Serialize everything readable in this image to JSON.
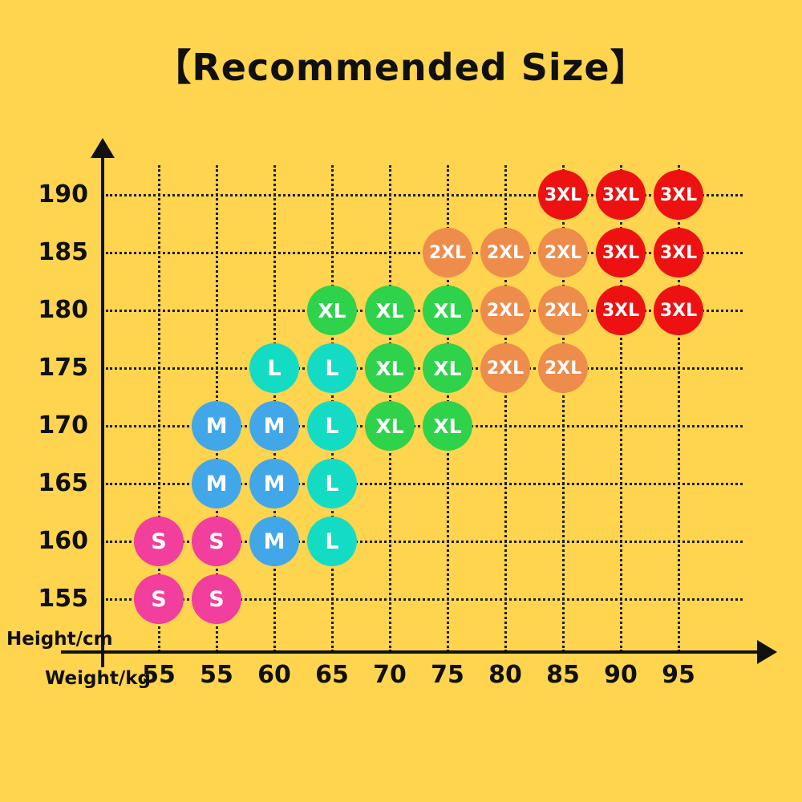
{
  "title": "【Recommended Size】",
  "axes": {
    "y_axis_label": "Height/cm",
    "x_axis_label": "Weight/kg",
    "y_ticks": [
      190,
      185,
      180,
      175,
      170,
      165,
      160,
      155
    ],
    "x_ticks": [
      "55",
      "55",
      "60",
      "65",
      "70",
      "75",
      "80",
      "85",
      "90",
      "95"
    ]
  },
  "colors": {
    "background": "#FFD44E",
    "grid": "#1C1C1C",
    "text": "#101010",
    "circle_text": "#FFFFFF",
    "sizes": {
      "S": "#F23E9C",
      "M": "#42A7E9",
      "L": "#14DCC4",
      "XL": "#2ED24B",
      "2XL": "#ED8C4B",
      "3XL": "#ED1111"
    }
  },
  "chart_data": {
    "type": "scatter",
    "title": "【Recommended Size】",
    "xlabel": "Weight/kg",
    "ylabel": "Height/cm",
    "x_tick_labels": [
      "55",
      "55",
      "60",
      "65",
      "70",
      "75",
      "80",
      "85",
      "90",
      "95"
    ],
    "y_tick_labels": [
      "190",
      "185",
      "180",
      "175",
      "170",
      "165",
      "160",
      "155"
    ],
    "grid": "dotted",
    "legend_position": "none",
    "points": [
      {
        "col": 0,
        "height": 155,
        "size": "S"
      },
      {
        "col": 1,
        "height": 155,
        "size": "S"
      },
      {
        "col": 0,
        "height": 160,
        "size": "S"
      },
      {
        "col": 1,
        "height": 160,
        "size": "S"
      },
      {
        "col": 2,
        "height": 160,
        "size": "M"
      },
      {
        "col": 3,
        "height": 160,
        "size": "L"
      },
      {
        "col": 1,
        "height": 165,
        "size": "M"
      },
      {
        "col": 2,
        "height": 165,
        "size": "M"
      },
      {
        "col": 3,
        "height": 165,
        "size": "L"
      },
      {
        "col": 1,
        "height": 170,
        "size": "M"
      },
      {
        "col": 2,
        "height": 170,
        "size": "M"
      },
      {
        "col": 3,
        "height": 170,
        "size": "L"
      },
      {
        "col": 4,
        "height": 170,
        "size": "XL"
      },
      {
        "col": 5,
        "height": 170,
        "size": "XL"
      },
      {
        "col": 2,
        "height": 175,
        "size": "L"
      },
      {
        "col": 3,
        "height": 175,
        "size": "L"
      },
      {
        "col": 4,
        "height": 175,
        "size": "XL"
      },
      {
        "col": 5,
        "height": 175,
        "size": "XL"
      },
      {
        "col": 6,
        "height": 175,
        "size": "2XL"
      },
      {
        "col": 7,
        "height": 175,
        "size": "2XL"
      },
      {
        "col": 3,
        "height": 180,
        "size": "XL"
      },
      {
        "col": 4,
        "height": 180,
        "size": "XL"
      },
      {
        "col": 5,
        "height": 180,
        "size": "XL"
      },
      {
        "col": 6,
        "height": 180,
        "size": "2XL"
      },
      {
        "col": 7,
        "height": 180,
        "size": "2XL"
      },
      {
        "col": 8,
        "height": 180,
        "size": "3XL"
      },
      {
        "col": 9,
        "height": 180,
        "size": "3XL"
      },
      {
        "col": 5,
        "height": 185,
        "size": "2XL"
      },
      {
        "col": 6,
        "height": 185,
        "size": "2XL"
      },
      {
        "col": 7,
        "height": 185,
        "size": "2XL"
      },
      {
        "col": 8,
        "height": 185,
        "size": "3XL"
      },
      {
        "col": 9,
        "height": 185,
        "size": "3XL"
      },
      {
        "col": 7,
        "height": 190,
        "size": "3XL"
      },
      {
        "col": 8,
        "height": 190,
        "size": "3XL"
      },
      {
        "col": 9,
        "height": 190,
        "size": "3XL"
      }
    ]
  }
}
